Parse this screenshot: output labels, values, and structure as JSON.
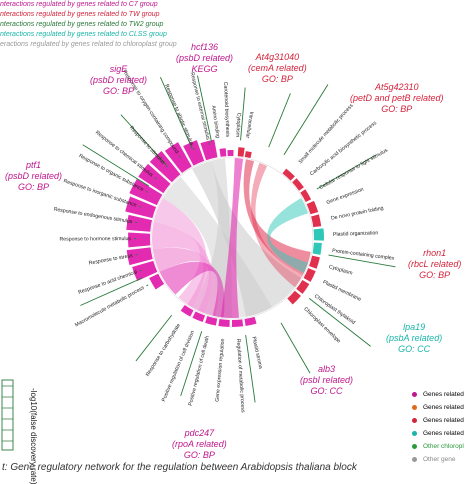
{
  "legend_top": [
    {
      "text": "nteractions regulated by genes related to C7 group",
      "color": "#c0178c"
    },
    {
      "text": "nteractions regulated by genes related to TW group",
      "color": "#d4233c"
    },
    {
      "text": "nteractions regulated by genes related to TW2 group",
      "color": "#2a7a3a"
    },
    {
      "text": "nteractions regulated by genes related to CLSS group",
      "color": "#1ab5a8"
    },
    {
      "text": "eractions regulated by genes related to chloroplast group",
      "color": "#999999"
    }
  ],
  "gene_labels": [
    {
      "id": "hcf136",
      "lines": [
        "hcf136",
        "(psbD related)",
        "KEGG"
      ],
      "color": "#c0178c"
    },
    {
      "id": "at4g31040",
      "lines": [
        "At4g31040",
        "(cemA related)",
        "GO: BP"
      ],
      "color": "#d4233c"
    },
    {
      "id": "sige",
      "lines": [
        "sigE",
        "(psbD related)",
        "GO: BP"
      ],
      "color": "#c0178c"
    },
    {
      "id": "at5g42310",
      "lines": [
        "At5g42310",
        "(petD and petB related)",
        "GO: BP"
      ],
      "color": "#d4233c"
    },
    {
      "id": "ptf1",
      "lines": [
        "ptf1",
        "(psbD related)",
        "GO: BP"
      ],
      "color": "#c0178c"
    },
    {
      "id": "rhon1",
      "lines": [
        "rhon1",
        "(rbcL related)",
        "GO: BP"
      ],
      "color": "#d4233c"
    },
    {
      "id": "lpa19",
      "lines": [
        "lpa19",
        "(psbA related)",
        "GO: CC"
      ],
      "color": "#1ab5a8"
    },
    {
      "id": "alb3",
      "lines": [
        "alb3",
        "(psbI related)",
        "GO: CC"
      ],
      "color": "#c0178c"
    },
    {
      "id": "pdc247",
      "lines": [
        "pdc247",
        "(rpoA related)",
        "GO: BP"
      ],
      "color": "#c0178c"
    }
  ],
  "terms_left": [
    "Macromolecule metabolic process",
    "Response to acid chemical",
    "Response to stress",
    "Response to hormone stimulus",
    "Response to endogenous stimulus",
    "Response to inorganic substance",
    "Response to organic substance",
    "Response to chemical stimulus",
    "Response to stimulus",
    "Response to oxygen-containing compound",
    "Response to abiotic stimulus",
    "Response to external stimulus"
  ],
  "terms_top": [
    "Amino binding",
    "Carotenoid biosynthesis",
    "Cytoplasm",
    "Intracellular"
  ],
  "terms_right": [
    "Small molecule metabolic process",
    "Carboxylic acid biosynthetic process",
    "Cellular response to light stimulus",
    "Gene expression",
    "De novo protein folding",
    "Plastid organization",
    "Protein-containing complex",
    "Cytoplasm",
    "Plastid membrane",
    "Chloroplast thylakoid",
    "Chloroplast envelope"
  ],
  "terms_bottom": [
    "Plastid stroma",
    "Regulation of metabolic process",
    "Gene expression regulation",
    "Positive regulation of cell death",
    "Positive regulation of cell division",
    "Response to carbohydrate"
  ],
  "legend_right": [
    {
      "label": "Genes related",
      "color": "#c0178c"
    },
    {
      "label": "Genes related",
      "color": "#e06a1a"
    },
    {
      "label": "Genes related",
      "color": "#d4233c"
    },
    {
      "label": "Genes related",
      "color": "#1ab5a8"
    },
    {
      "label": "Other chloropl",
      "color": "#2a9a3a"
    },
    {
      "label": "Other gene",
      "color": "#999999"
    }
  ],
  "fdr_title": "-log10(false discovery rate)",
  "caption": "t: Gene regulatory network for the regulation between Arabidopsis thaliana block",
  "colors": {
    "magenta": "#e22bb0",
    "pink": "#f29ad8",
    "red": "#e0304e",
    "teal": "#2ec7b8",
    "green": "#2a7a3a",
    "gray": "#c9c9c9"
  }
}
